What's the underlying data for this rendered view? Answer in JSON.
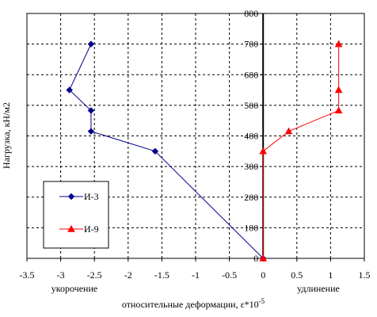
{
  "chart_data": {
    "type": "line",
    "title": "",
    "xlabel": "относительные деформации, ε*10",
    "xlabel_superscript": "-5",
    "ylabel": "Нагрузка, кН/м2",
    "side_labels": {
      "left": "укорочение",
      "right": "удлинение"
    },
    "xlim": [
      -3.5,
      1.5
    ],
    "ylim": [
      0,
      800
    ],
    "xticks": [
      -3.5,
      -3,
      -2.5,
      -2,
      -1.5,
      -1,
      -0.5,
      0,
      0.5,
      1,
      1.5
    ],
    "xtick_labels": [
      "-3.5",
      "-3",
      "-2.5",
      "-2",
      "-1.5",
      "-1",
      "-0.5",
      "0",
      "0.5",
      "1",
      "1.5"
    ],
    "yticks": [
      0,
      100,
      200,
      300,
      400,
      500,
      600,
      700,
      800
    ],
    "ytick_labels": [
      "0",
      "100",
      "200",
      "300",
      "400",
      "500",
      "600",
      "700",
      "800"
    ],
    "grid": true,
    "legend_position": "bottom-left",
    "series": [
      {
        "name": "И-3",
        "color": "#00008B",
        "marker": "diamond",
        "x": [
          0,
          -1.6,
          -2.55,
          -2.55,
          -2.87,
          -2.55
        ],
        "y": [
          0,
          350,
          415,
          483,
          550,
          700
        ]
      },
      {
        "name": "И-9",
        "color": "#FF0000",
        "marker": "triangle",
        "x": [
          0,
          0,
          0.38,
          1.12,
          1.12,
          1.12
        ],
        "y": [
          0,
          350,
          415,
          483,
          550,
          700
        ]
      }
    ]
  }
}
